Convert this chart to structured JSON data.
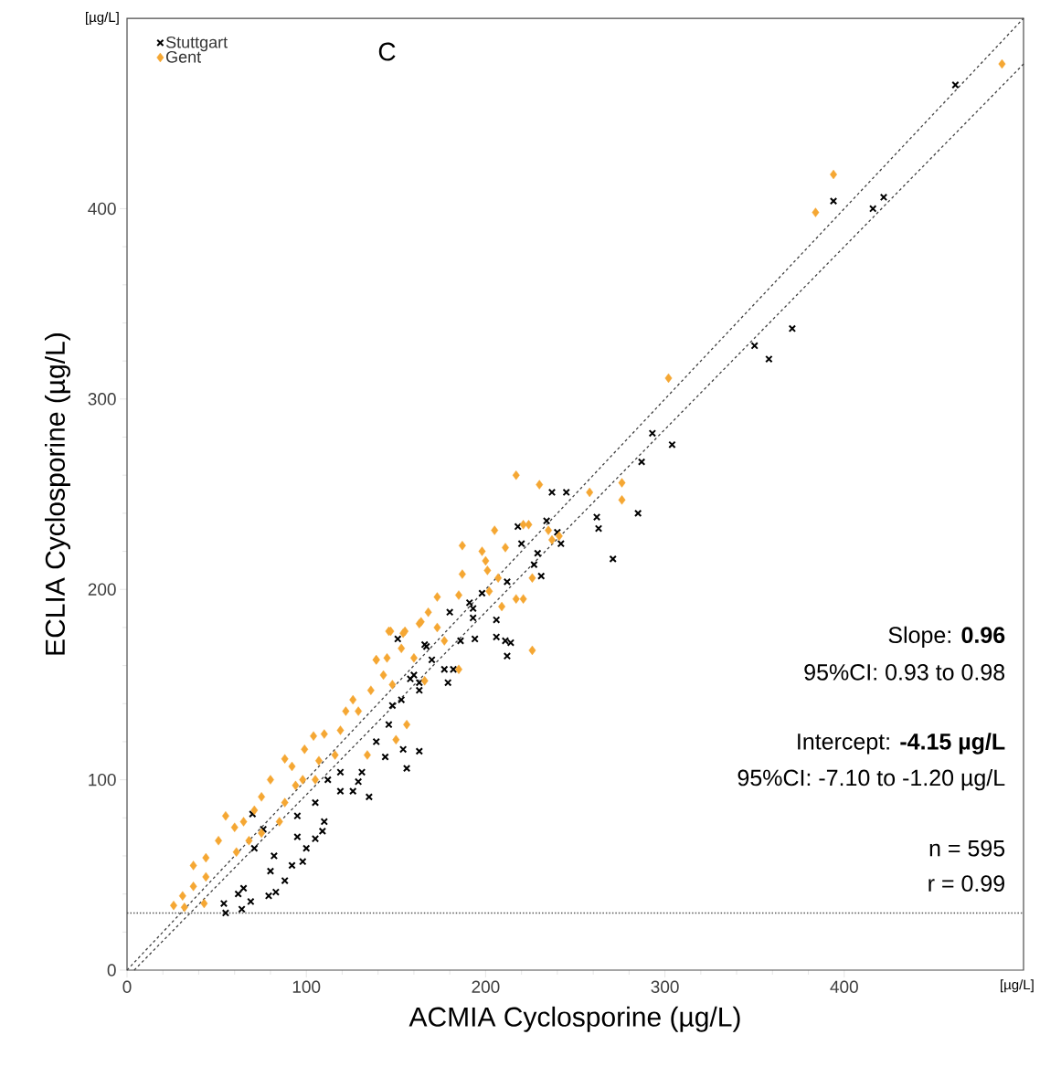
{
  "chart_data": {
    "type": "scatter",
    "xlabel": "ACMIA Cyclosporine (µg/L)",
    "ylabel": "ECLIA Cyclosporine (µg/L)",
    "xlim": [
      0,
      500
    ],
    "ylim": [
      0,
      500
    ],
    "xticks": [
      0,
      100,
      200,
      300,
      400
    ],
    "yticks": [
      0,
      100,
      200,
      300,
      400
    ],
    "grid": false,
    "legend": "top left",
    "series": [
      {
        "name": "Stuttgart",
        "color": "#000000",
        "marker": "cross",
        "x": [
          462,
          416,
          422,
          394,
          371,
          350,
          358,
          293,
          304,
          287,
          285,
          271,
          262,
          263,
          237,
          245,
          234,
          240,
          220,
          218,
          242,
          229,
          227,
          231,
          212,
          198,
          191,
          193,
          180,
          193,
          206,
          186,
          194,
          206,
          211,
          214,
          212,
          151,
          167,
          170,
          177,
          182,
          160,
          163,
          179,
          156,
          163,
          154,
          135,
          129,
          144,
          110,
          105,
          98,
          80,
          88,
          79,
          83,
          69,
          64,
          54,
          55,
          70,
          65,
          62,
          82,
          100,
          109,
          95,
          119,
          126,
          119,
          112,
          131,
          139,
          146,
          153,
          163,
          158,
          166,
          148,
          92,
          76,
          71,
          105,
          95
        ],
        "values": [
          465,
          400,
          406,
          404,
          337,
          328,
          321,
          282,
          276,
          267,
          240,
          216,
          238,
          232,
          251,
          251,
          236,
          230,
          224,
          233,
          224,
          219,
          213,
          207,
          204,
          198,
          193,
          190,
          188,
          185,
          184,
          173,
          174,
          175,
          173,
          172,
          165,
          174,
          170,
          163,
          158,
          158,
          155,
          151,
          151,
          106,
          115,
          116,
          91,
          99,
          112,
          78,
          69,
          57,
          52,
          47,
          39,
          41,
          36,
          32,
          35,
          30,
          82,
          43,
          40,
          60,
          64,
          73,
          70,
          94,
          94,
          104,
          100,
          104,
          120,
          129,
          142,
          147,
          153,
          171,
          139,
          55,
          74,
          64,
          88,
          81
        ]
      },
      {
        "name": "Gent",
        "color": "#f5a733",
        "marker": "diamond",
        "x": [
          488,
          394,
          384,
          302,
          217,
          230,
          258,
          276,
          276,
          221,
          224,
          205,
          187,
          198,
          211,
          200,
          201,
          187,
          235,
          237,
          241,
          226,
          207,
          217,
          221,
          209,
          202,
          226,
          173,
          185,
          168,
          164,
          147,
          155,
          153,
          173,
          177,
          185,
          139,
          145,
          26,
          31,
          37,
          37,
          44,
          51,
          55,
          60,
          65,
          71,
          75,
          80,
          88,
          92,
          98,
          94,
          99,
          104,
          107,
          110,
          119,
          122,
          126,
          129,
          136,
          139,
          146,
          154,
          143,
          148,
          160,
          163,
          166,
          156,
          150,
          134,
          68,
          75,
          85,
          88,
          61,
          44,
          32,
          43,
          116,
          105
        ],
        "values": [
          476,
          418,
          398,
          311,
          260,
          255,
          251,
          256,
          247,
          234,
          234,
          231,
          223,
          220,
          222,
          215,
          210,
          208,
          231,
          226,
          228,
          206,
          206,
          195,
          195,
          191,
          199,
          168,
          196,
          197,
          188,
          183,
          178,
          178,
          169,
          180,
          173,
          158,
          163,
          164,
          34,
          39,
          44,
          55,
          59,
          68,
          81,
          75,
          78,
          84,
          91,
          100,
          111,
          107,
          100,
          97,
          116,
          123,
          110,
          124,
          126,
          136,
          142,
          136,
          147,
          163,
          178,
          177,
          155,
          150,
          164,
          182,
          152,
          129,
          121,
          113,
          68,
          72,
          78,
          88,
          62,
          49,
          33,
          35,
          113,
          100
        ]
      },
      {
        "type": "line",
        "color": "#404040",
        "line_style": "dashed",
        "x": [
          0,
          500
        ],
        "values": [
          0,
          500
        ]
      },
      {
        "type": "line",
        "color": "#404040",
        "line_style": "dashed",
        "x": [
          4,
          500
        ],
        "values": [
          0,
          476
        ]
      }
    ],
    "ref_lines": [
      {
        "axis": "y",
        "value": 30,
        "color": "#555555",
        "line_style": "dotted"
      }
    ],
    "annotations": [
      "[µg/L]",
      "[µg/L]",
      "C",
      "Slope: **0.96**",
      "95%CI: 0.93 to 0.98",
      "Intercept: **-4.15 µg/L**",
      "95%CI: -7.10 to -1.20 µg/L",
      "n = 595",
      "r = 0.99"
    ]
  }
}
